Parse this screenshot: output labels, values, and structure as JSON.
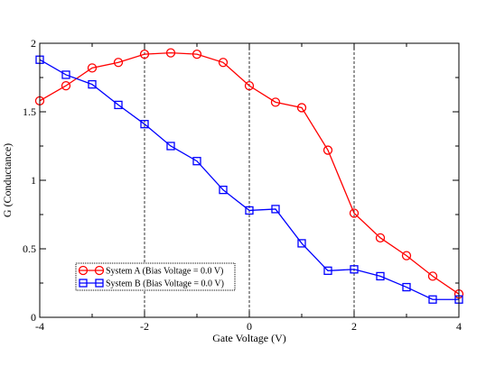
{
  "chart_data": {
    "type": "line",
    "xlabel": "Gate Voltage (V)",
    "ylabel": "G (Conductance)",
    "xlim": [
      -4,
      4
    ],
    "ylim": [
      0,
      2
    ],
    "x_ticks": [
      "-4",
      "-2",
      "0",
      "2",
      "4"
    ],
    "y_ticks": [
      "0",
      "0.5",
      "1",
      "1.5",
      "2"
    ],
    "vertical_dashed_lines_at_x": [
      -2,
      0,
      2
    ],
    "legend_placement": "bottom-left",
    "x": [
      -4,
      -3.5,
      -3,
      -2.5,
      -2,
      -1.5,
      -1,
      -0.5,
      0,
      0.5,
      1,
      1.5,
      2,
      2.5,
      3,
      3.5,
      4
    ],
    "series": [
      {
        "name": "System A (Bias Voltage = 0.0 V)",
        "color": "#ff0000",
        "marker": "circle",
        "values": [
          1.58,
          1.69,
          1.82,
          1.86,
          1.92,
          1.93,
          1.92,
          1.86,
          1.69,
          1.57,
          1.53,
          1.22,
          0.76,
          0.58,
          0.45,
          0.3,
          0.17
        ]
      },
      {
        "name": "System B (Bias Voltage = 0.0 V)",
        "color": "#0000ff",
        "marker": "square",
        "values": [
          1.88,
          1.77,
          1.7,
          1.55,
          1.41,
          1.25,
          1.14,
          0.93,
          0.78,
          0.79,
          0.54,
          0.34,
          0.35,
          0.3,
          0.22,
          0.13,
          0.13
        ]
      }
    ]
  }
}
